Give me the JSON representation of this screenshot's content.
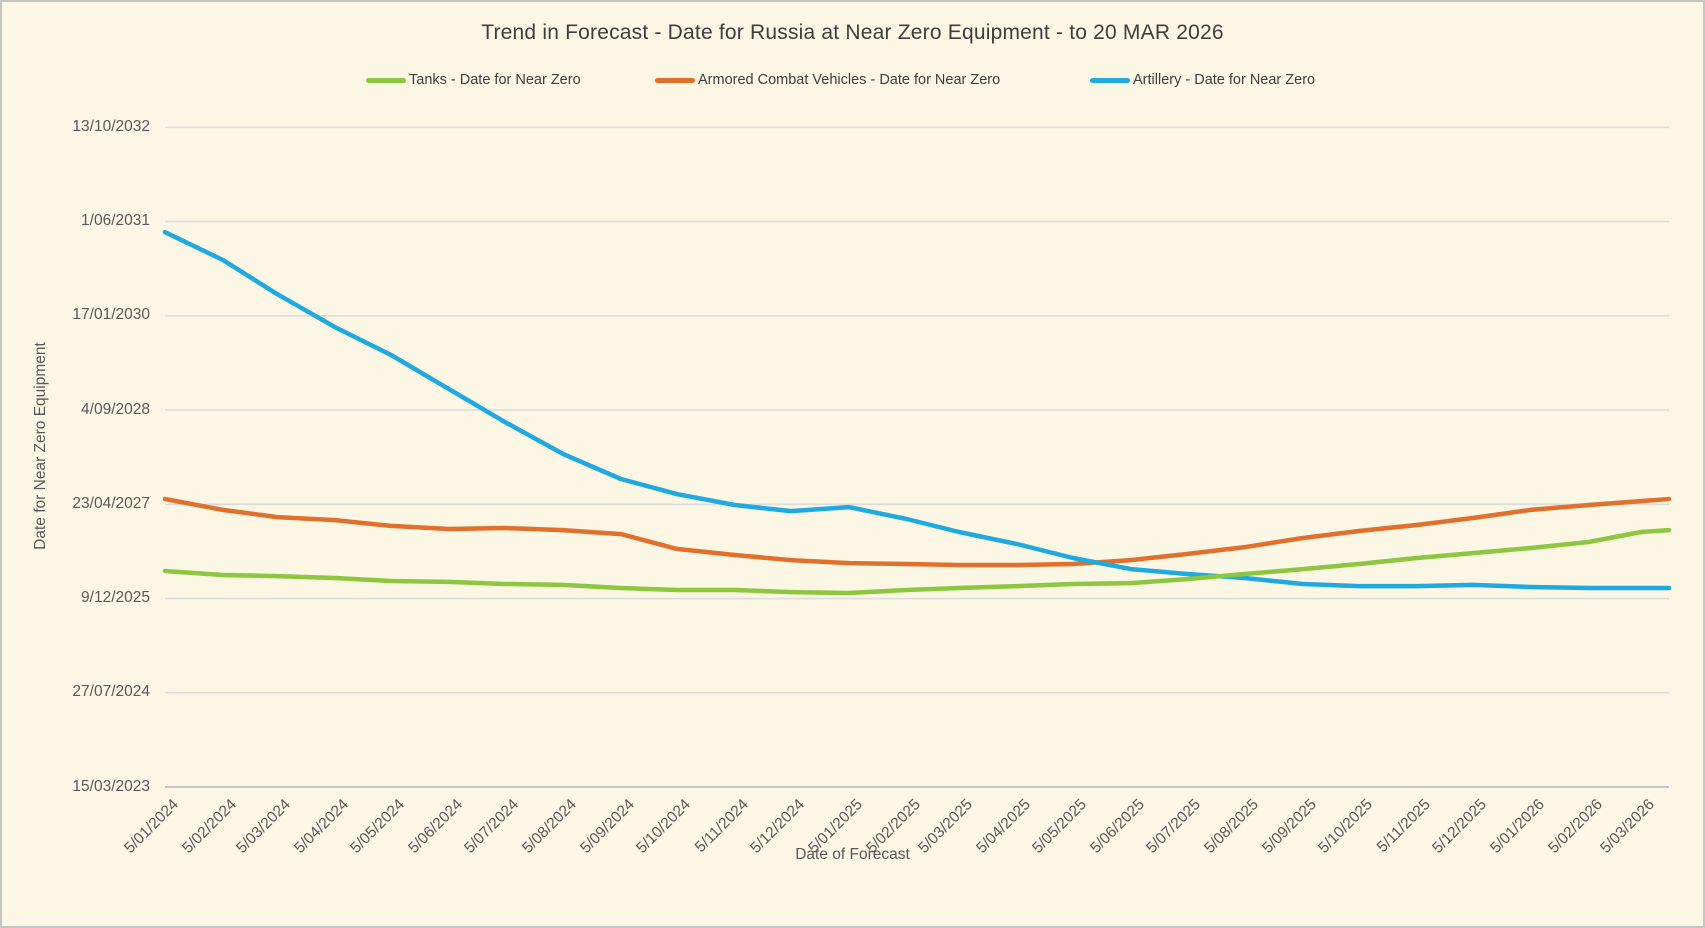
{
  "colors": {
    "background": "#FCF6E4",
    "frame_border": "#C6C6C6",
    "gridline": "#DCDCDC",
    "axis_line": "#C4C4C4",
    "title_text": "#3E3E3E",
    "tick_text": "#595959",
    "tanks_green": "#8DC63F",
    "acv_orange": "#E1702D",
    "artillery_blue": "#1FA9E2"
  },
  "chart_data": {
    "type": "line",
    "title": "Trend in Forecast - Date for Russia at Near Zero Equipment - to 20 MAR 2026",
    "xlabel": "Date of Forecast",
    "ylabel": "Date for Near Zero Equipment",
    "legend_position": "top",
    "grid": "horizontal",
    "x_axis_range": [
      "5/01/2024",
      "20/03/2026"
    ],
    "y_axis_range": [
      "15/03/2023",
      "13/10/2032"
    ],
    "y_tick_labels": [
      "15/03/2023",
      "27/07/2024",
      "9/12/2025",
      "23/04/2027",
      "4/09/2028",
      "17/01/2030",
      "1/06/2031",
      "13/10/2032"
    ],
    "x_tick_labels": [
      "5/01/2024",
      "5/02/2024",
      "5/03/2024",
      "5/04/2024",
      "5/05/2024",
      "5/06/2024",
      "5/07/2024",
      "5/08/2024",
      "5/09/2024",
      "5/10/2024",
      "5/11/2024",
      "5/12/2024",
      "5/01/2025",
      "5/02/2025",
      "5/03/2025",
      "5/04/2025",
      "5/05/2025",
      "5/06/2025",
      "5/07/2025",
      "5/08/2025",
      "5/09/2025",
      "5/10/2025",
      "5/11/2025",
      "5/12/2025",
      "5/01/2026",
      "5/02/2026",
      "5/03/2026"
    ],
    "x": [
      "5/01/2024",
      "5/02/2024",
      "5/03/2024",
      "5/04/2024",
      "5/05/2024",
      "5/06/2024",
      "5/07/2024",
      "5/08/2024",
      "5/09/2024",
      "5/10/2024",
      "5/11/2024",
      "5/12/2024",
      "5/01/2025",
      "5/02/2025",
      "5/03/2025",
      "5/04/2025",
      "5/05/2025",
      "5/06/2025",
      "5/07/2025",
      "5/08/2025",
      "5/09/2025",
      "5/10/2025",
      "5/11/2025",
      "5/12/2025",
      "5/01/2026",
      "5/02/2026",
      "5/03/2026",
      "20/03/2026"
    ],
    "series": [
      {
        "name": "Tanks - Date for Near Zero",
        "color": "#8DC63F",
        "values": [
          "4/05/2026",
          "13/04/2026",
          "7/04/2026",
          "28/03/2026",
          "12/03/2026",
          "7/03/2026",
          "24/02/2026",
          "19/02/2026",
          "3/02/2026",
          "23/01/2026",
          "23/01/2026",
          "12/01/2026",
          "7/01/2026",
          "23/01/2026",
          "3/02/2026",
          "13/02/2026",
          "24/02/2026",
          "1/03/2026",
          "22/03/2026",
          "18/04/2026",
          "14/05/2026",
          "10/06/2026",
          "12/07/2026",
          "7/08/2026",
          "3/09/2026",
          "5/10/2026",
          "27/11/2026",
          "7/12/2026"
        ]
      },
      {
        "name": "Armored Combat Vehicles - Date for Near Zero",
        "color": "#E1702D",
        "values": [
          "21/05/2027",
          "24/03/2027",
          "14/02/2027",
          "29/01/2027",
          "29/12/2026",
          "13/12/2026",
          "18/12/2026",
          "7/12/2026",
          "16/11/2026",
          "29/08/2026",
          "28/07/2026",
          "1/07/2026",
          "15/06/2026",
          "10/06/2026",
          "5/06/2026",
          "5/06/2026",
          "10/06/2026",
          "1/07/2026",
          "2/08/2026",
          "8/09/2026",
          "26/10/2026",
          "2/12/2026",
          "3/01/2027",
          "9/02/2027",
          "24/03/2027",
          "19/04/2027",
          "10/05/2027",
          "21/05/2027"
        ]
      },
      {
        "name": "Artillery - Date for Near Zero",
        "color": "#1FA9E2",
        "values": [
          "6/04/2031",
          "9/11/2030",
          "12/05/2030",
          "18/11/2029",
          "23/06/2029",
          "24/12/2028",
          "2/07/2028",
          "15/01/2028",
          "4/09/2027",
          "16/06/2027",
          "19/04/2027",
          "18/03/2027",
          "8/04/2027",
          "4/02/2027",
          "27/11/2026",
          "24/09/2026",
          "12/07/2026",
          "14/05/2026",
          "18/04/2026",
          "28/03/2026",
          "24/02/2026",
          "13/02/2026",
          "13/02/2026",
          "19/02/2026",
          "8/02/2026",
          "3/02/2026",
          "3/02/2026",
          "3/02/2026"
        ]
      }
    ]
  }
}
